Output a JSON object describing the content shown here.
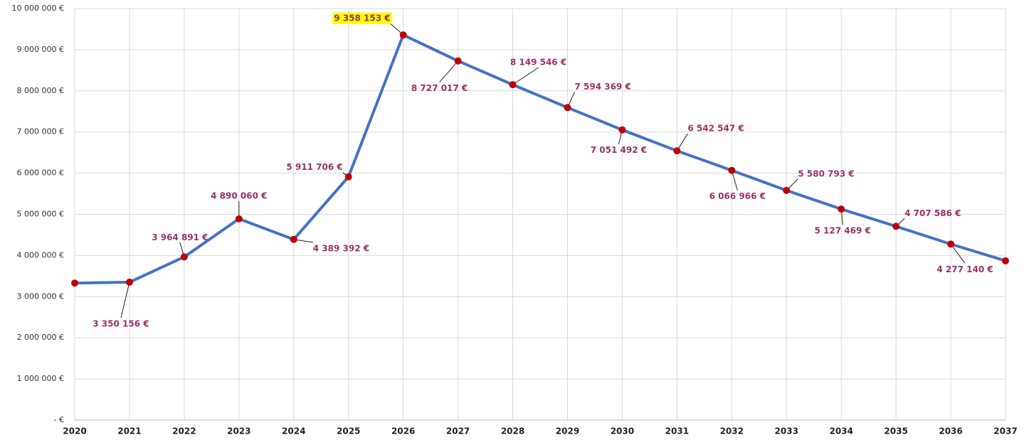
{
  "chart_data": {
    "type": "line",
    "categories": [
      "2020",
      "2021",
      "2022",
      "2023",
      "2024",
      "2025",
      "2026",
      "2027",
      "2028",
      "2029",
      "2030",
      "2031",
      "2032",
      "2033",
      "2034",
      "2035",
      "2036",
      "2037"
    ],
    "series": [
      {
        "color": "#4472c4",
        "marker_color": "#c00000",
        "values": [
          3330000,
          3350156,
          3964891,
          4890060,
          4389392,
          5911706,
          9358153,
          8727017,
          8149546,
          7594369,
          7051492,
          6542547,
          6066966,
          5580793,
          5127469,
          4707586,
          4277140,
          3870000
        ],
        "value_labels": [
          null,
          "3 350 156 €",
          "3 964 891 €",
          "4 890 060 €",
          "4 389 392 €",
          "5 911 706 €",
          "9 358 153 €",
          "8 727 017 €",
          "8 149 546 €",
          "7 594 369 €",
          "7 051 492 €",
          "6 542 547 €",
          "6 066 966 €",
          "5 580 793 €",
          "5 127 469 €",
          "4 707 586 €",
          "4 277 140 €",
          null
        ]
      }
    ],
    "ylim": [
      0,
      10000000
    ],
    "yticks": [
      {
        "value": 0,
        "label": "- €"
      },
      {
        "value": 1000000,
        "label": "1 000 000 €"
      },
      {
        "value": 2000000,
        "label": "2 000 000 €"
      },
      {
        "value": 3000000,
        "label": "3 000 000 €"
      },
      {
        "value": 4000000,
        "label": "4 000 000 €"
      },
      {
        "value": 5000000,
        "label": "5 000 000 €"
      },
      {
        "value": 6000000,
        "label": "6 000 000 €"
      },
      {
        "value": 7000000,
        "label": "7 000 000 €"
      },
      {
        "value": 8000000,
        "label": "8 000 000 €"
      },
      {
        "value": 9000000,
        "label": "9 000 000 €"
      },
      {
        "value": 10000000,
        "label": "10 000 000 €"
      }
    ],
    "grid": true,
    "label_color": "#993366",
    "highlight": {
      "index": 6,
      "color": "#ffff00"
    }
  }
}
